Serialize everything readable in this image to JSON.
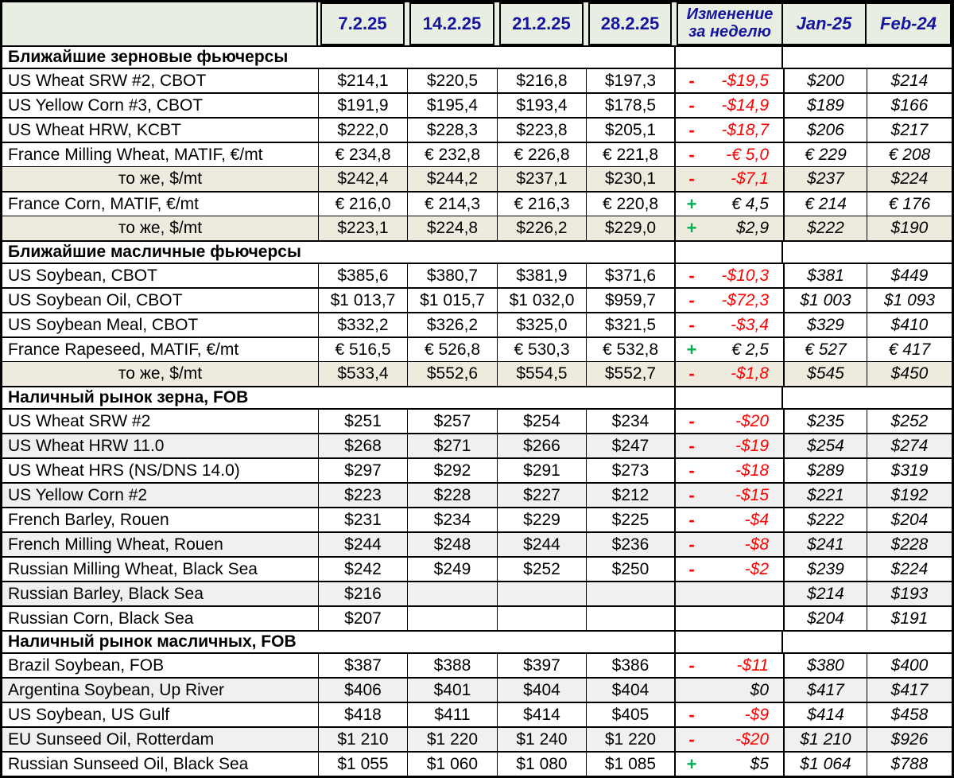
{
  "colors": {
    "header_bg": "#e9eee2",
    "header_text": "#15159e",
    "beige_row_bg": "#eeeadd",
    "gray_row_bg": "#f0f0f0",
    "negative": "#ff0000",
    "positive_sign": "#00b050",
    "grid": "#000000"
  },
  "chart_data": {
    "type": "table",
    "header": {
      "date_columns": [
        "7.2.25",
        "14.2.25",
        "21.2.25",
        "28.2.25"
      ],
      "change_column": {
        "line1": "Изменение",
        "line2": "за неделю"
      },
      "ref_columns": [
        "Jan-25",
        "Feb-24"
      ]
    },
    "sections": [
      {
        "title": "Ближайшие зерновые фьючерсы",
        "rows": [
          {
            "label": "US Wheat SRW #2, CBOT",
            "align": "left",
            "bg": "white",
            "thin_top": false,
            "values": [
              "$214,1",
              "$220,5",
              "$216,8",
              "$197,3"
            ],
            "sign": "-",
            "change": "-$19,5",
            "change_negative": true,
            "jan": "$200",
            "feb": "$214"
          },
          {
            "label": "US Yellow Corn #3, CBOT",
            "align": "left",
            "bg": "white",
            "thin_top": false,
            "values": [
              "$191,9",
              "$195,4",
              "$193,4",
              "$178,5"
            ],
            "sign": "-",
            "change": "-$14,9",
            "change_negative": true,
            "jan": "$189",
            "feb": "$166"
          },
          {
            "label": "US Wheat HRW, KCBT",
            "align": "left",
            "bg": "white",
            "thin_top": false,
            "values": [
              "$222,0",
              "$228,3",
              "$223,8",
              "$205,1"
            ],
            "sign": "-",
            "change": "-$18,7",
            "change_negative": true,
            "jan": "$206",
            "feb": "$217"
          },
          {
            "label": "France Milling Wheat, MATIF, €/mt",
            "align": "left",
            "bg": "white",
            "thin_top": false,
            "values": [
              "€ 234,8",
              "€ 232,8",
              "€ 226,8",
              "€ 221,8"
            ],
            "sign": "-",
            "change": "-€ 5,0",
            "change_negative": true,
            "jan": "€ 229",
            "feb": "€ 208"
          },
          {
            "label": "то же, $/mt",
            "align": "center",
            "bg": "beige",
            "thin_top": true,
            "values": [
              "$242,4",
              "$244,2",
              "$237,1",
              "$230,1"
            ],
            "sign": "-",
            "change": "-$7,1",
            "change_negative": true,
            "jan": "$237",
            "feb": "$224"
          },
          {
            "label": "France Corn, MATIF, €/mt",
            "align": "left",
            "bg": "white",
            "thin_top": false,
            "values": [
              "€ 216,0",
              "€ 214,3",
              "€ 216,3",
              "€ 220,8"
            ],
            "sign": "+",
            "change": "€ 4,5",
            "change_negative": false,
            "jan": "€ 214",
            "feb": "€ 176"
          },
          {
            "label": "то же, $/mt",
            "align": "center",
            "bg": "beige",
            "thin_top": true,
            "values": [
              "$223,1",
              "$224,8",
              "$226,2",
              "$229,0"
            ],
            "sign": "+",
            "change": "$2,9",
            "change_negative": false,
            "jan": "$222",
            "feb": "$190"
          }
        ]
      },
      {
        "title": "Ближайшие масличные фьючерсы",
        "rows": [
          {
            "label": "US Soybean, CBOT",
            "align": "left",
            "bg": "white",
            "thin_top": false,
            "values": [
              "$385,6",
              "$380,7",
              "$381,9",
              "$371,6"
            ],
            "sign": "-",
            "change": "-$10,3",
            "change_negative": true,
            "jan": "$381",
            "feb": "$449"
          },
          {
            "label": "US Soybean Oil, CBOT",
            "align": "left",
            "bg": "white",
            "thin_top": false,
            "values": [
              "$1 013,7",
              "$1 015,7",
              "$1 032,0",
              "$959,7"
            ],
            "sign": "-",
            "change": "-$72,3",
            "change_negative": true,
            "jan": "$1 003",
            "feb": "$1 093"
          },
          {
            "label": "US Soybean Meal, CBOT",
            "align": "left",
            "bg": "white",
            "thin_top": false,
            "values": [
              "$332,2",
              "$326,2",
              "$325,0",
              "$321,5"
            ],
            "sign": "-",
            "change": "-$3,4",
            "change_negative": true,
            "jan": "$329",
            "feb": "$410"
          },
          {
            "label": "France Rapeseed, MATIF, €/mt",
            "align": "left",
            "bg": "white",
            "thin_top": false,
            "values": [
              "€ 516,5",
              "€ 526,8",
              "€ 530,3",
              "€ 532,8"
            ],
            "sign": "+",
            "change": "€ 2,5",
            "change_negative": false,
            "jan": "€ 527",
            "feb": "€ 417"
          },
          {
            "label": "то же, $/mt",
            "align": "center",
            "bg": "beige",
            "thin_top": true,
            "values": [
              "$533,4",
              "$552,6",
              "$554,5",
              "$552,7"
            ],
            "sign": "-",
            "change": "-$1,8",
            "change_negative": true,
            "jan": "$545",
            "feb": "$450"
          }
        ]
      },
      {
        "title": "Наличный рынок зерна, FOB",
        "rows": [
          {
            "label": "US Wheat SRW #2",
            "align": "left",
            "bg": "white",
            "thin_top": false,
            "values": [
              "$251",
              "$257",
              "$254",
              "$234"
            ],
            "sign": "-",
            "change": "-$20",
            "change_negative": true,
            "jan": "$235",
            "feb": "$252"
          },
          {
            "label": "US Wheat HRW 11.0",
            "align": "left",
            "bg": "gray",
            "thin_top": false,
            "values": [
              "$268",
              "$271",
              "$266",
              "$247"
            ],
            "sign": "-",
            "change": "-$19",
            "change_negative": true,
            "jan": "$254",
            "feb": "$274"
          },
          {
            "label": "US Wheat HRS (NS/DNS 14.0)",
            "align": "left",
            "bg": "white",
            "thin_top": false,
            "values": [
              "$297",
              "$292",
              "$291",
              "$273"
            ],
            "sign": "-",
            "change": "-$18",
            "change_negative": true,
            "jan": "$289",
            "feb": "$319"
          },
          {
            "label": "US Yellow Corn #2",
            "align": "left",
            "bg": "gray",
            "thin_top": false,
            "values": [
              "$223",
              "$228",
              "$227",
              "$212"
            ],
            "sign": "-",
            "change": "-$15",
            "change_negative": true,
            "jan": "$221",
            "feb": "$192"
          },
          {
            "label": "French Barley, Rouen",
            "align": "left",
            "bg": "white",
            "thin_top": false,
            "values": [
              "$231",
              "$234",
              "$229",
              "$225"
            ],
            "sign": "-",
            "change": "-$4",
            "change_negative": true,
            "jan": "$222",
            "feb": "$204"
          },
          {
            "label": "French Milling Wheat, Rouen",
            "align": "left",
            "bg": "gray",
            "thin_top": false,
            "values": [
              "$244",
              "$248",
              "$244",
              "$236"
            ],
            "sign": "-",
            "change": "-$8",
            "change_negative": true,
            "jan": "$241",
            "feb": "$228"
          },
          {
            "label": "Russian Milling Wheat, Black Sea",
            "align": "left",
            "bg": "white",
            "thin_top": false,
            "values": [
              "$242",
              "$249",
              "$252",
              "$250"
            ],
            "sign": "-",
            "change": "-$2",
            "change_negative": true,
            "jan": "$239",
            "feb": "$224"
          },
          {
            "label": "Russian Barley, Black Sea",
            "align": "left",
            "bg": "gray",
            "thin_top": false,
            "values": [
              "$216",
              "",
              "",
              ""
            ],
            "sign": "",
            "change": "",
            "change_negative": false,
            "jan": "$214",
            "feb": "$193"
          },
          {
            "label": "Russian Corn, Black Sea",
            "align": "left",
            "bg": "white",
            "thin_top": false,
            "values": [
              "$207",
              "",
              "",
              ""
            ],
            "sign": "",
            "change": "",
            "change_negative": false,
            "jan": "$204",
            "feb": "$191"
          }
        ]
      },
      {
        "title": "Наличный рынок масличных, FOB",
        "rows": [
          {
            "label": "Brazil Soybean, FOB",
            "align": "left",
            "bg": "white",
            "thin_top": false,
            "values": [
              "$387",
              "$388",
              "$397",
              "$386"
            ],
            "sign": "-",
            "change": "-$11",
            "change_negative": true,
            "jan": "$380",
            "feb": "$400"
          },
          {
            "label": "Argentina Soybean, Up River",
            "align": "left",
            "bg": "gray",
            "thin_top": false,
            "values": [
              "$406",
              "$401",
              "$404",
              "$404"
            ],
            "sign": "",
            "change": "$0",
            "change_negative": false,
            "jan": "$417",
            "feb": "$417"
          },
          {
            "label": "US Soybean, US Gulf",
            "align": "left",
            "bg": "white",
            "thin_top": false,
            "values": [
              "$418",
              "$411",
              "$414",
              "$405"
            ],
            "sign": "-",
            "change": "-$9",
            "change_negative": true,
            "jan": "$414",
            "feb": "$458"
          },
          {
            "label": "EU Sunseed Oil, Rotterdam",
            "align": "left",
            "bg": "gray",
            "thin_top": false,
            "values": [
              "$1 210",
              "$1 220",
              "$1 240",
              "$1 220"
            ],
            "sign": "-",
            "change": "-$20",
            "change_negative": true,
            "jan": "$1 210",
            "feb": "$926"
          },
          {
            "label": "Russian Sunseed Oil, Black Sea",
            "align": "left",
            "bg": "white",
            "thin_top": false,
            "values": [
              "$1 055",
              "$1 060",
              "$1 080",
              "$1 085"
            ],
            "sign": "+",
            "change": "$5",
            "change_negative": false,
            "jan": "$1 064",
            "feb": "$788"
          }
        ]
      }
    ]
  }
}
